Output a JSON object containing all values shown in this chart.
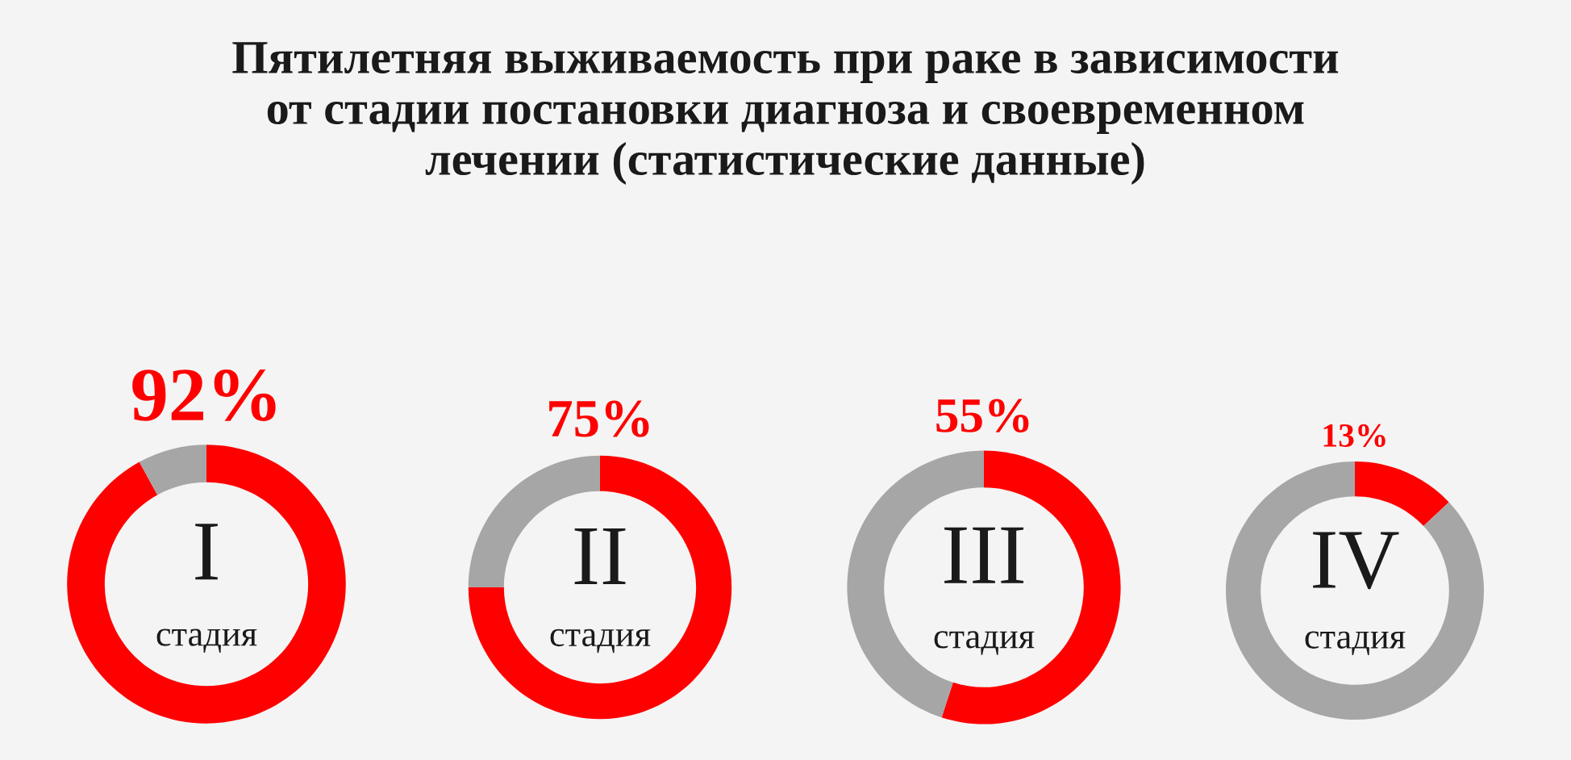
{
  "chart_data": [
    {
      "type": "donut",
      "title": "Пятилетняя выживаемость при раке в зависимости\nот стадии постановки диагноза и своевременном\nлечении (статистические данные)",
      "categories": [
        null,
        null
      ],
      "values": [
        92,
        8
      ],
      "colors": [
        "#ff0000",
        "#a6a6a6"
      ],
      "value_labels": [
        "92%",
        null
      ],
      "annotations": [
        "I",
        "стадия"
      ]
    },
    {
      "type": "donut",
      "categories": [
        null,
        null
      ],
      "values": [
        75,
        25
      ],
      "colors": [
        "#ff0000",
        "#a6a6a6"
      ],
      "value_labels": [
        "75%",
        null
      ],
      "annotations": [
        "II",
        "стадия"
      ]
    },
    {
      "type": "donut",
      "categories": [
        null,
        null
      ],
      "values": [
        55,
        45
      ],
      "colors": [
        "#ff0000",
        "#a6a6a6"
      ],
      "value_labels": [
        "55%",
        null
      ],
      "annotations": [
        "III",
        "стадия"
      ]
    },
    {
      "type": "donut",
      "categories": [
        null,
        null
      ],
      "values": [
        13,
        87
      ],
      "colors": [
        "#ff0000",
        "#a6a6a6"
      ],
      "value_labels": [
        "13%",
        null
      ],
      "annotations": [
        "IV",
        "стадия"
      ]
    }
  ]
}
